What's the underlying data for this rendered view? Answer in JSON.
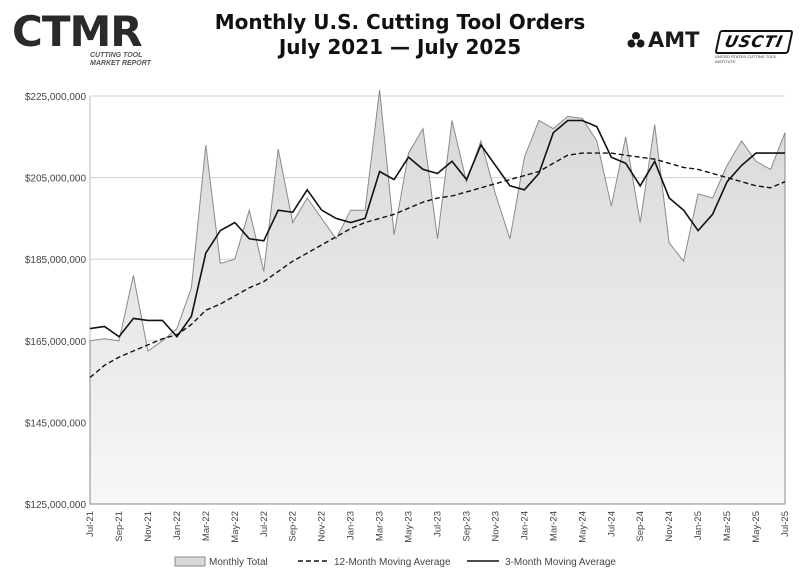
{
  "logo_left": {
    "brand": "CTMR",
    "subtitle": "CUTTING TOOL MARKET REPORT"
  },
  "logo_right": {
    "amt": "AMT",
    "ucti": "USCTI",
    "ucti_sub": "UNITED STATES CUTTING TOOL INSTITUTE"
  },
  "colors": {
    "area_top": "#d7d7d7",
    "area_bottom": "#f7f7f7",
    "grid": "#d0d0d0",
    "line": "#111111",
    "monthly_edge": "#8a8a8a"
  },
  "chart_data": {
    "type": "area",
    "title": "Monthly U.S. Cutting Tool Orders",
    "subtitle": "July 2021 — July 2025",
    "ylim": [
      125000000,
      225000000
    ],
    "yticks": [
      "$125,000,000",
      "$145,000,000",
      "$165,000,000",
      "$185,000,000",
      "$205,000,000",
      "$225,000,000"
    ],
    "ytick_values": [
      125000000,
      145000000,
      165000000,
      185000000,
      205000000,
      225000000
    ],
    "xtick_labels": [
      "Jul-21",
      "Sep-21",
      "Nov-21",
      "Jan-22",
      "Mar-22",
      "May-22",
      "Jul-22",
      "Sep-22",
      "Nov-22",
      "Jan-23",
      "Mar-23",
      "May-23",
      "Jul-23",
      "Sep-23",
      "Nov-23",
      "Jan-24",
      "Mar-24",
      "May-24",
      "Jul-24",
      "Sep-24",
      "Nov-24",
      "Jan-25",
      "Mar-25",
      "May-25",
      "Jul-25"
    ],
    "months": [
      "Jul-21",
      "Aug-21",
      "Sep-21",
      "Oct-21",
      "Nov-21",
      "Dec-21",
      "Jan-22",
      "Feb-22",
      "Mar-22",
      "Apr-22",
      "May-22",
      "Jun-22",
      "Jul-22",
      "Aug-22",
      "Sep-22",
      "Oct-22",
      "Nov-22",
      "Dec-22",
      "Jan-23",
      "Feb-23",
      "Mar-23",
      "Apr-23",
      "May-23",
      "Jun-23",
      "Jul-23",
      "Aug-23",
      "Sep-23",
      "Oct-23",
      "Nov-23",
      "Dec-23",
      "Jan-24",
      "Feb-24",
      "Mar-24",
      "Apr-24",
      "May-24",
      "Jun-24",
      "Jul-24",
      "Aug-24",
      "Sep-24",
      "Oct-24",
      "Nov-24",
      "Dec-24",
      "Jan-25",
      "Feb-25",
      "Mar-25",
      "Apr-25",
      "May-25",
      "Jun-25",
      "Jul-25"
    ],
    "legend_position": "bottom",
    "grid": true,
    "series": [
      {
        "name": "Monthly Total",
        "style": "area",
        "values": [
          165000000,
          165500000,
          165000000,
          181000000,
          162500000,
          165000000,
          168000000,
          178000000,
          213000000,
          184000000,
          185000000,
          197000000,
          182000000,
          212000000,
          194000000,
          200000000,
          195000000,
          190000000,
          197000000,
          197000000,
          226500000,
          191000000,
          211000000,
          217000000,
          190000000,
          219000000,
          204000000,
          214000000,
          201000000,
          190000000,
          210000000,
          219000000,
          217000000,
          220000000,
          219500000,
          214000000,
          198000000,
          215000000,
          194000000,
          218000000,
          189000000,
          184500000,
          201000000,
          200000000,
          208000000,
          214000000,
          209000000,
          207000000,
          216000000
        ]
      },
      {
        "name": "12-Month Moving Average",
        "style": "dashed",
        "values": [
          156000000,
          159000000,
          161000000,
          162500000,
          164000000,
          165500000,
          166500000,
          169000000,
          172500000,
          174000000,
          176000000,
          178000000,
          179500000,
          182000000,
          184500000,
          186500000,
          188500000,
          190500000,
          192500000,
          194000000,
          195000000,
          196000000,
          197500000,
          199000000,
          200000000,
          200500000,
          201500000,
          202500000,
          203500000,
          204500000,
          205500000,
          206500000,
          208500000,
          210500000,
          211000000,
          211000000,
          211000000,
          210500000,
          210000000,
          209500000,
          208500000,
          207500000,
          207000000,
          206000000,
          205000000,
          204000000,
          203000000,
          202500000,
          204000000
        ]
      },
      {
        "name": "3-Month Moving Average",
        "style": "solid",
        "values": [
          168000000,
          168500000,
          166000000,
          170500000,
          170000000,
          170000000,
          166000000,
          171000000,
          186500000,
          192000000,
          194000000,
          190000000,
          189500000,
          197000000,
          196500000,
          202000000,
          197000000,
          195000000,
          194000000,
          195000000,
          206500000,
          204500000,
          210000000,
          207000000,
          206000000,
          209000000,
          204500000,
          213000000,
          208000000,
          203000000,
          202000000,
          206000000,
          216000000,
          219000000,
          219000000,
          217500000,
          210000000,
          208500000,
          203000000,
          209000000,
          200000000,
          197000000,
          192000000,
          196000000,
          204000000,
          208000000,
          211000000,
          211000000,
          211000000
        ]
      }
    ]
  }
}
